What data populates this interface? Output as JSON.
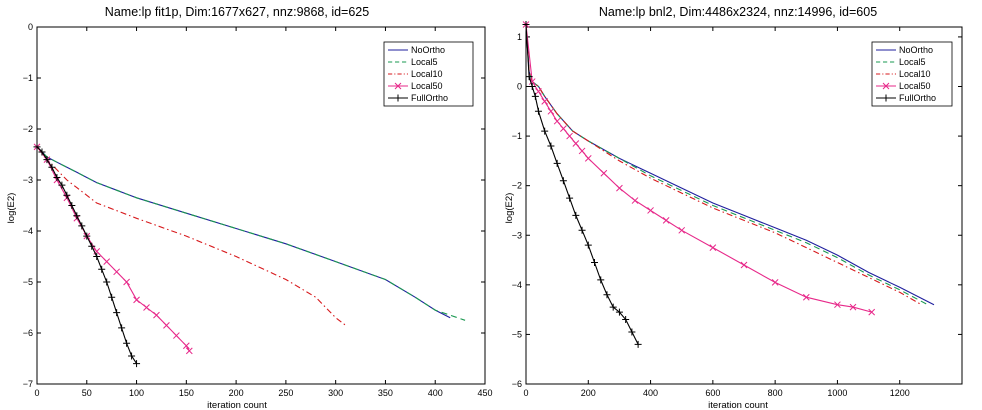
{
  "chart_data": [
    {
      "type": "line",
      "title": "Name:lp fit1p, Dim:1677x627, nnz:9868, id=625",
      "xlabel": "iteration count",
      "ylabel": "log(E2)",
      "xlim": [
        0,
        450
      ],
      "ylim": [
        -7,
        0
      ],
      "xticks": [
        0,
        50,
        100,
        150,
        200,
        250,
        300,
        350,
        400,
        450
      ],
      "yticks": [
        0,
        -1,
        -2,
        -3,
        -4,
        -5,
        -6,
        -7
      ],
      "legend_position": "top-right",
      "series": [
        {
          "name": "NoOrtho",
          "color": "#1f1f9e",
          "dash": "",
          "marker": "none",
          "x": [
            0,
            10,
            20,
            30,
            40,
            50,
            60,
            80,
            100,
            150,
            200,
            250,
            300,
            350,
            380,
            400,
            415
          ],
          "y": [
            -2.35,
            -2.55,
            -2.65,
            -2.75,
            -2.85,
            -2.95,
            -3.05,
            -3.2,
            -3.35,
            -3.65,
            -3.95,
            -4.25,
            -4.6,
            -4.95,
            -5.3,
            -5.55,
            -5.7
          ]
        },
        {
          "name": "Local5",
          "color": "#1a9850",
          "dash": "6,4",
          "marker": "none",
          "x": [
            0,
            10,
            20,
            30,
            40,
            50,
            60,
            80,
            100,
            150,
            200,
            250,
            300,
            350,
            380,
            400,
            430
          ],
          "y": [
            -2.35,
            -2.55,
            -2.65,
            -2.75,
            -2.85,
            -2.95,
            -3.05,
            -3.2,
            -3.35,
            -3.65,
            -3.95,
            -4.25,
            -4.6,
            -4.95,
            -5.3,
            -5.55,
            -5.75
          ]
        },
        {
          "name": "Local10",
          "color": "#d7191c",
          "dash": "6,3,1.5,3",
          "marker": "none",
          "x": [
            0,
            10,
            20,
            30,
            40,
            50,
            60,
            80,
            100,
            150,
            200,
            250,
            280,
            300,
            310
          ],
          "y": [
            -2.35,
            -2.6,
            -2.8,
            -3.0,
            -3.15,
            -3.3,
            -3.45,
            -3.6,
            -3.75,
            -4.1,
            -4.5,
            -4.95,
            -5.3,
            -5.7,
            -5.85
          ]
        },
        {
          "name": "Local50",
          "color": "#e7298a",
          "dash": "",
          "marker": "x",
          "x": [
            0,
            10,
            20,
            30,
            40,
            50,
            60,
            70,
            80,
            90,
            100,
            110,
            120,
            130,
            140,
            150,
            153
          ],
          "y": [
            -2.35,
            -2.6,
            -3.0,
            -3.35,
            -3.75,
            -4.1,
            -4.4,
            -4.6,
            -4.8,
            -5.0,
            -5.35,
            -5.5,
            -5.65,
            -5.85,
            -6.05,
            -6.25,
            -6.35
          ]
        },
        {
          "name": "FullOrtho",
          "color": "#000000",
          "dash": "",
          "marker": "+",
          "x": [
            0,
            5,
            10,
            15,
            20,
            25,
            30,
            35,
            40,
            45,
            50,
            55,
            60,
            65,
            70,
            75,
            80,
            85,
            90,
            95,
            100
          ],
          "y": [
            -2.35,
            -2.45,
            -2.6,
            -2.75,
            -2.95,
            -3.1,
            -3.3,
            -3.5,
            -3.7,
            -3.9,
            -4.1,
            -4.3,
            -4.5,
            -4.75,
            -5.0,
            -5.3,
            -5.6,
            -5.9,
            -6.2,
            -6.45,
            -6.6
          ]
        }
      ]
    },
    {
      "type": "line",
      "title": "Name:lp bnl2, Dim:4486x2324, nnz:14996, id=605",
      "xlabel": "iteration count",
      "ylabel": "log(E2)",
      "xlim": [
        0,
        1400
      ],
      "ylim": [
        -6,
        1.2
      ],
      "xticks": [
        0,
        200,
        400,
        600,
        800,
        1000,
        1200
      ],
      "yticks": [
        1,
        0,
        -1,
        -2,
        -3,
        -4,
        -5,
        -6
      ],
      "legend_position": "top-right",
      "series": [
        {
          "name": "NoOrtho",
          "color": "#1f1f9e",
          "dash": "",
          "marker": "none",
          "x": [
            0,
            10,
            20,
            40,
            60,
            100,
            150,
            200,
            300,
            400,
            500,
            600,
            700,
            800,
            900,
            1000,
            1100,
            1200,
            1310
          ],
          "y": [
            1.25,
            0.3,
            0.1,
            0.0,
            -0.2,
            -0.55,
            -0.9,
            -1.1,
            -1.45,
            -1.75,
            -2.05,
            -2.35,
            -2.6,
            -2.85,
            -3.1,
            -3.4,
            -3.75,
            -4.05,
            -4.4
          ]
        },
        {
          "name": "Local5",
          "color": "#1a9850",
          "dash": "6,4",
          "marker": "none",
          "x": [
            0,
            10,
            20,
            40,
            60,
            100,
            150,
            200,
            300,
            400,
            500,
            600,
            700,
            800,
            900,
            1000,
            1100,
            1200,
            1290
          ],
          "y": [
            1.25,
            0.3,
            0.1,
            0.0,
            -0.2,
            -0.55,
            -0.9,
            -1.1,
            -1.45,
            -1.8,
            -2.1,
            -2.4,
            -2.65,
            -2.9,
            -3.15,
            -3.45,
            -3.8,
            -4.1,
            -4.4
          ]
        },
        {
          "name": "Local10",
          "color": "#d7191c",
          "dash": "6,3,1.5,3",
          "marker": "none",
          "x": [
            0,
            10,
            20,
            40,
            60,
            100,
            150,
            200,
            300,
            400,
            500,
            600,
            700,
            800,
            900,
            1000,
            1100,
            1200,
            1270
          ],
          "y": [
            1.25,
            0.3,
            0.1,
            0.0,
            -0.2,
            -0.55,
            -0.9,
            -1.1,
            -1.5,
            -1.85,
            -2.15,
            -2.45,
            -2.7,
            -2.95,
            -3.25,
            -3.55,
            -3.85,
            -4.15,
            -4.4
          ]
        },
        {
          "name": "Local50",
          "color": "#e7298a",
          "dash": "",
          "marker": "x",
          "x": [
            0,
            20,
            40,
            60,
            80,
            100,
            120,
            140,
            160,
            180,
            200,
            250,
            300,
            350,
            400,
            450,
            500,
            600,
            700,
            800,
            900,
            1000,
            1050,
            1110
          ],
          "y": [
            1.25,
            0.1,
            -0.1,
            -0.3,
            -0.5,
            -0.7,
            -0.85,
            -1.0,
            -1.15,
            -1.3,
            -1.45,
            -1.75,
            -2.05,
            -2.3,
            -2.5,
            -2.7,
            -2.9,
            -3.25,
            -3.6,
            -3.95,
            -4.25,
            -4.4,
            -4.45,
            -4.55
          ]
        },
        {
          "name": "FullOrtho",
          "color": "#000000",
          "dash": "",
          "marker": "+",
          "x": [
            0,
            10,
            20,
            30,
            40,
            60,
            80,
            100,
            120,
            140,
            160,
            180,
            200,
            220,
            240,
            260,
            280,
            300,
            320,
            340,
            360
          ],
          "y": [
            1.25,
            0.2,
            0.0,
            -0.2,
            -0.5,
            -0.9,
            -1.2,
            -1.55,
            -1.9,
            -2.25,
            -2.6,
            -2.9,
            -3.2,
            -3.55,
            -3.9,
            -4.2,
            -4.45,
            -4.55,
            -4.7,
            -4.95,
            -5.2
          ]
        }
      ]
    }
  ]
}
